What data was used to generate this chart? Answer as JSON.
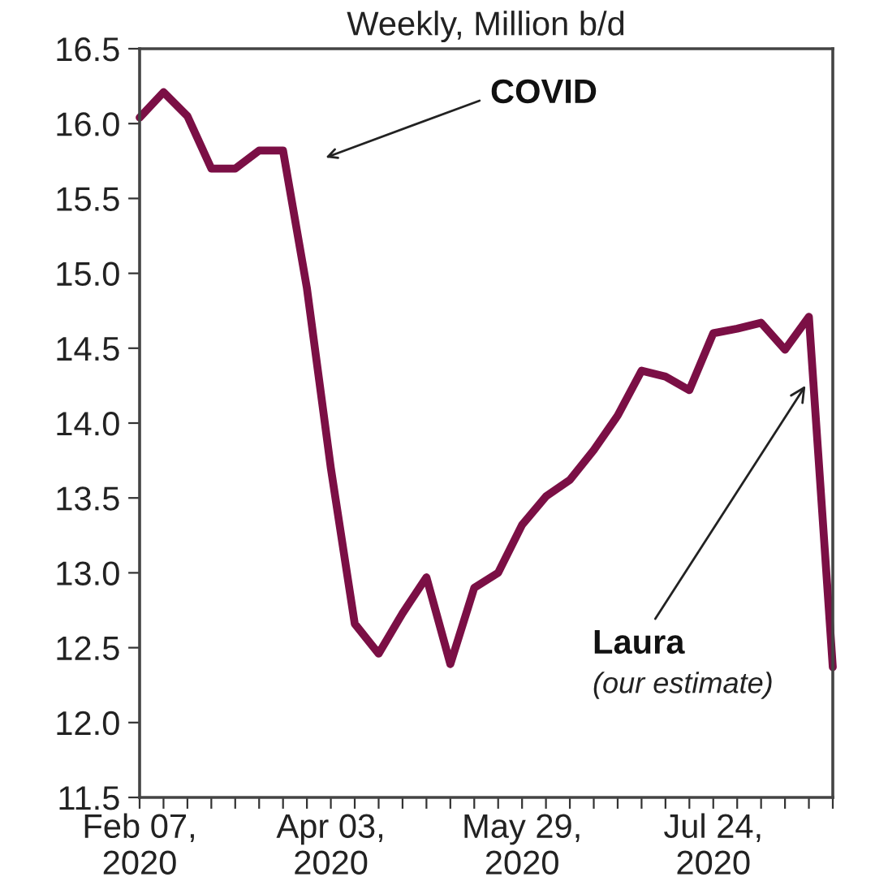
{
  "chart_data": {
    "type": "line",
    "title": "Weekly, Million b/d",
    "x": [
      "2020-02-07",
      "2020-02-14",
      "2020-02-21",
      "2020-02-28",
      "2020-03-06",
      "2020-03-13",
      "2020-03-20",
      "2020-03-27",
      "2020-04-03",
      "2020-04-10",
      "2020-04-17",
      "2020-04-24",
      "2020-05-01",
      "2020-05-08",
      "2020-05-15",
      "2020-05-22",
      "2020-05-29",
      "2020-06-05",
      "2020-06-12",
      "2020-06-19",
      "2020-06-26",
      "2020-07-03",
      "2020-07-10",
      "2020-07-17",
      "2020-07-24",
      "2020-07-31",
      "2020-08-07",
      "2020-08-14",
      "2020-08-21",
      "2020-08-28"
    ],
    "series": [
      {
        "color": "#7b0f45",
        "values": [
          16.04,
          16.21,
          16.05,
          15.7,
          15.7,
          15.82,
          15.82,
          14.9,
          13.7,
          12.66,
          12.46,
          12.73,
          12.97,
          12.39,
          12.9,
          13.0,
          13.32,
          13.51,
          13.62,
          13.82,
          14.05,
          14.35,
          14.31,
          14.22,
          14.6,
          14.63,
          14.67,
          14.49,
          14.71,
          12.37
        ]
      }
    ],
    "xlim": [
      "2020-02-07",
      "2020-08-28"
    ],
    "ylim": [
      11.5,
      16.5
    ],
    "yticks": [
      {
        "value": 11.5,
        "label": "11.5"
      },
      {
        "value": 12,
        "label": "12.0"
      },
      {
        "value": 12.5,
        "label": "12.5"
      },
      {
        "value": 13,
        "label": "13.0"
      },
      {
        "value": 13.5,
        "label": "13.5"
      },
      {
        "value": 14,
        "label": "14.0"
      },
      {
        "value": 14.5,
        "label": "14.5"
      },
      {
        "value": 15,
        "label": "15.0"
      },
      {
        "value": 15.5,
        "label": "15.5"
      },
      {
        "value": 16,
        "label": "16.0"
      },
      {
        "value": 16.5,
        "label": "16.5"
      }
    ],
    "xticks": [
      {
        "value": "2020-02-07",
        "label": "Feb 07,\n2020"
      },
      {
        "value": "2020-02-14",
        "label": null
      },
      {
        "value": "2020-02-21",
        "label": null
      },
      {
        "value": "2020-02-28",
        "label": null
      },
      {
        "value": "2020-03-06",
        "label": null
      },
      {
        "value": "2020-03-13",
        "label": null
      },
      {
        "value": "2020-03-20",
        "label": null
      },
      {
        "value": "2020-03-27",
        "label": null
      },
      {
        "value": "2020-04-03",
        "label": "Apr 03,\n2020"
      },
      {
        "value": "2020-04-10",
        "label": null
      },
      {
        "value": "2020-04-17",
        "label": null
      },
      {
        "value": "2020-04-24",
        "label": null
      },
      {
        "value": "2020-05-01",
        "label": null
      },
      {
        "value": "2020-05-08",
        "label": null
      },
      {
        "value": "2020-05-15",
        "label": null
      },
      {
        "value": "2020-05-22",
        "label": null
      },
      {
        "value": "2020-05-29",
        "label": "May 29,\n2020"
      },
      {
        "value": "2020-06-05",
        "label": null
      },
      {
        "value": "2020-06-12",
        "label": null
      },
      {
        "value": "2020-06-19",
        "label": null
      },
      {
        "value": "2020-06-26",
        "label": null
      },
      {
        "value": "2020-07-03",
        "label": null
      },
      {
        "value": "2020-07-10",
        "label": null
      },
      {
        "value": "2020-07-17",
        "label": null
      },
      {
        "value": "2020-07-24",
        "label": "Jul 24,\n2020"
      },
      {
        "value": "2020-07-31",
        "label": null
      },
      {
        "value": "2020-08-07",
        "label": null
      },
      {
        "value": "2020-08-14",
        "label": null
      },
      {
        "value": "2020-08-21",
        "label": null
      },
      {
        "value": "2020-08-28",
        "label": null
      }
    ],
    "grid": false,
    "marker": "none",
    "line_style": "solid",
    "annotations": [
      "COVID",
      {
        "text": "Laura",
        "x": "2020-08-20",
        "y": 14.25
      },
      "(our estimate)"
    ]
  }
}
